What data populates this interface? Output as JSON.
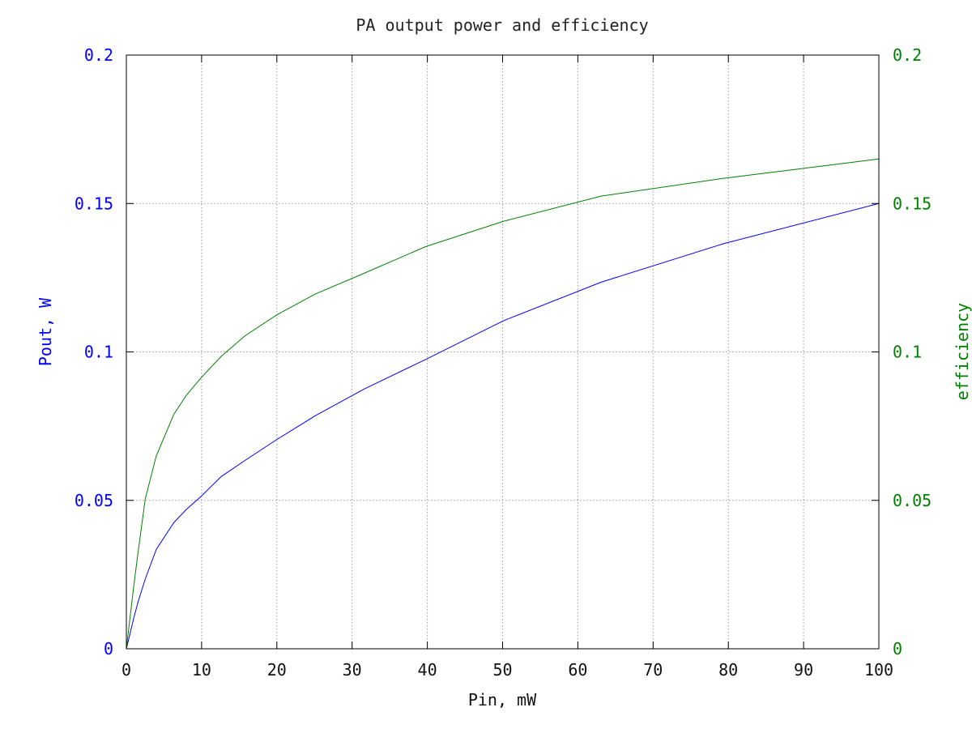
{
  "chart_data": {
    "type": "line",
    "title": "PA output power and efficiency",
    "xlabel": "Pin, mW",
    "ylabel": "Pout, W",
    "y2label": "efficiency",
    "xlim": [
      0,
      100
    ],
    "ylim": [
      0,
      0.2
    ],
    "y2lim": [
      0,
      0.2
    ],
    "x_ticks": [
      "0",
      "10",
      "20",
      "30",
      "40",
      "50",
      "60",
      "70",
      "80",
      "90",
      "100"
    ],
    "y_ticks": [
      "0",
      "0.05",
      "0.1",
      "0.15",
      "0.2"
    ],
    "y2_ticks": [
      "0",
      "0.05",
      "0.1",
      "0.15",
      "0.2"
    ],
    "grid": true,
    "colors": {
      "pout": "#0000ff",
      "efficiency": "#008000",
      "axes": "#000000",
      "grid": "#9a9a9a"
    },
    "series": [
      {
        "key": "pout",
        "axis": "left",
        "color": "#0000ff",
        "x": [
          0,
          1,
          1.58,
          2.51,
          3.98,
          6.31,
          8,
          10,
          12.6,
          15.8,
          20,
          25.1,
          31.6,
          39.8,
          50.1,
          63.1,
          79.4,
          100
        ],
        "y": [
          0,
          0.0105,
          0.016,
          0.0235,
          0.0335,
          0.0425,
          0.047,
          0.0515,
          0.058,
          0.0635,
          0.0705,
          0.0785,
          0.0875,
          0.0975,
          0.1105,
          0.1235,
          0.1365,
          0.15
        ]
      },
      {
        "key": "efficiency",
        "axis": "right",
        "color": "#008000",
        "x": [
          0,
          1,
          1.58,
          2.51,
          3.98,
          6.31,
          8,
          10,
          12.6,
          15.8,
          20,
          25.1,
          31.6,
          39.8,
          50.1,
          63.1,
          79.4,
          100
        ],
        "y": [
          0,
          0.0215,
          0.033,
          0.0505,
          0.065,
          0.079,
          0.0855,
          0.0915,
          0.0985,
          0.1055,
          0.1125,
          0.1195,
          0.1265,
          0.1355,
          0.144,
          0.1525,
          0.1585,
          0.165
        ]
      }
    ]
  }
}
